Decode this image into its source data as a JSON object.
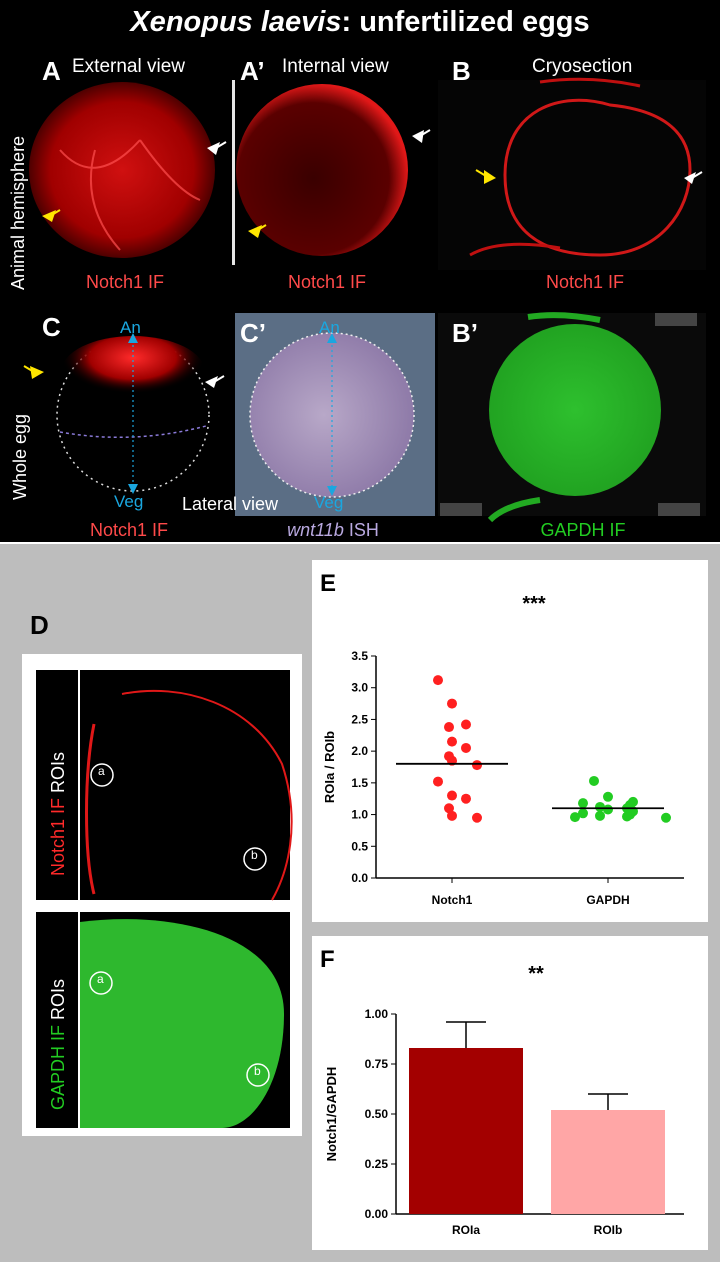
{
  "title": {
    "italic": "Xenopus laevis",
    "rest": ": unfertilized eggs"
  },
  "panels": {
    "A": {
      "letter": "A",
      "view": "External view",
      "caption": "Notch1 IF"
    },
    "A2": {
      "letter": "A’",
      "view": "Internal view",
      "caption": "Notch1 IF"
    },
    "B": {
      "letter": "B",
      "view": "Cryosection",
      "caption": "Notch1 IF"
    },
    "C": {
      "letter": "C",
      "caption": "Notch1 IF",
      "an": "An",
      "veg": "Veg"
    },
    "C2": {
      "letter": "C’",
      "an": "An",
      "veg": "Veg",
      "lateral": "Lateral view",
      "caption_italic": "wnt11b",
      "caption_rest": " ISH"
    },
    "B2": {
      "letter": "B’",
      "caption": "GAPDH IF"
    },
    "D": {
      "letter": "D",
      "top_label_red": "Notch1 IF",
      "top_label_white": " ROIs",
      "bottom_label_green": "GAPDH IF",
      "bottom_label_white": " ROIs",
      "roi_a": "a",
      "roi_b": "b"
    },
    "E": {
      "letter": "E"
    },
    "F": {
      "letter": "F"
    }
  },
  "side_labels": {
    "row1": "Animal hemisphere",
    "row2": "Whole egg"
  },
  "colors": {
    "notch": "#ff4a4a",
    "gapdh": "#22cc22",
    "wnt": "#b9a9e0",
    "axis_blue": "#1aa7e0",
    "arrow_yellow": "#ffe600"
  },
  "chart_data": [
    {
      "type": "scatter",
      "panel": "E",
      "title": "***",
      "ylabel": "ROIa / ROIb",
      "xlabel": "",
      "categories": [
        "Notch1",
        "GAPDH"
      ],
      "ylim": [
        0.0,
        3.5
      ],
      "yticks": [
        "0.0",
        "0.5",
        "1.0",
        "1.5",
        "2.0",
        "2.5",
        "3.0",
        "3.5"
      ],
      "series": [
        {
          "category": "Notch1",
          "color": "#ff2020",
          "values": [
            3.12,
            2.75,
            2.42,
            2.38,
            2.15,
            2.05,
            1.92,
            1.85,
            1.78,
            1.52,
            1.3,
            1.25,
            1.1,
            0.98,
            0.95
          ],
          "mean": 1.8
        },
        {
          "category": "GAPDH",
          "color": "#22cc22",
          "values": [
            1.53,
            1.28,
            1.2,
            1.18,
            1.15,
            1.12,
            1.1,
            1.08,
            1.05,
            1.02,
            1.0,
            0.98,
            0.97,
            0.96,
            0.95
          ],
          "mean": 1.1
        }
      ]
    },
    {
      "type": "bar",
      "panel": "F",
      "title": "**",
      "ylabel": "Notch1/GAPDH",
      "xlabel": "",
      "categories": [
        "ROIa",
        "ROIb"
      ],
      "values": [
        0.83,
        0.52
      ],
      "errors": [
        0.13,
        0.08
      ],
      "colors": [
        "#a30000",
        "#ffa6a6"
      ],
      "ylim": [
        0.0,
        1.0
      ],
      "yticks": [
        "0.00",
        "0.25",
        "0.50",
        "0.75",
        "1.00"
      ]
    }
  ]
}
